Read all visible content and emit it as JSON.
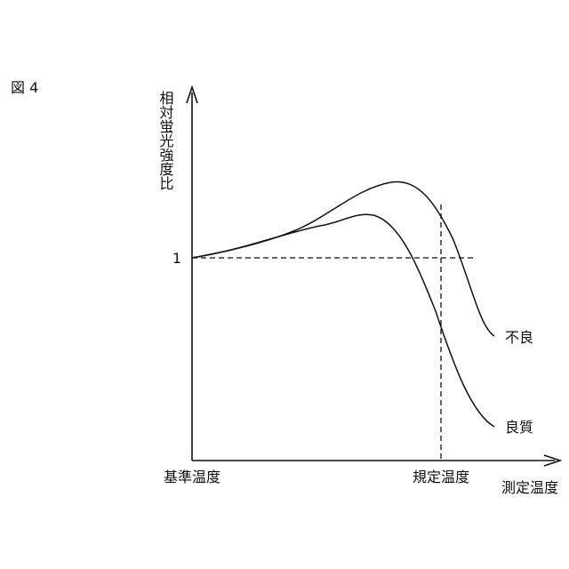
{
  "figure_label": "図 4",
  "y_axis_label": "相対蛍光強度比",
  "y_reference_label": "1",
  "x_labels": {
    "reference": "基準温度",
    "specified": "規定温度",
    "axis": "測定温度"
  },
  "curves": {
    "defective": "不良",
    "good": "良質"
  }
}
